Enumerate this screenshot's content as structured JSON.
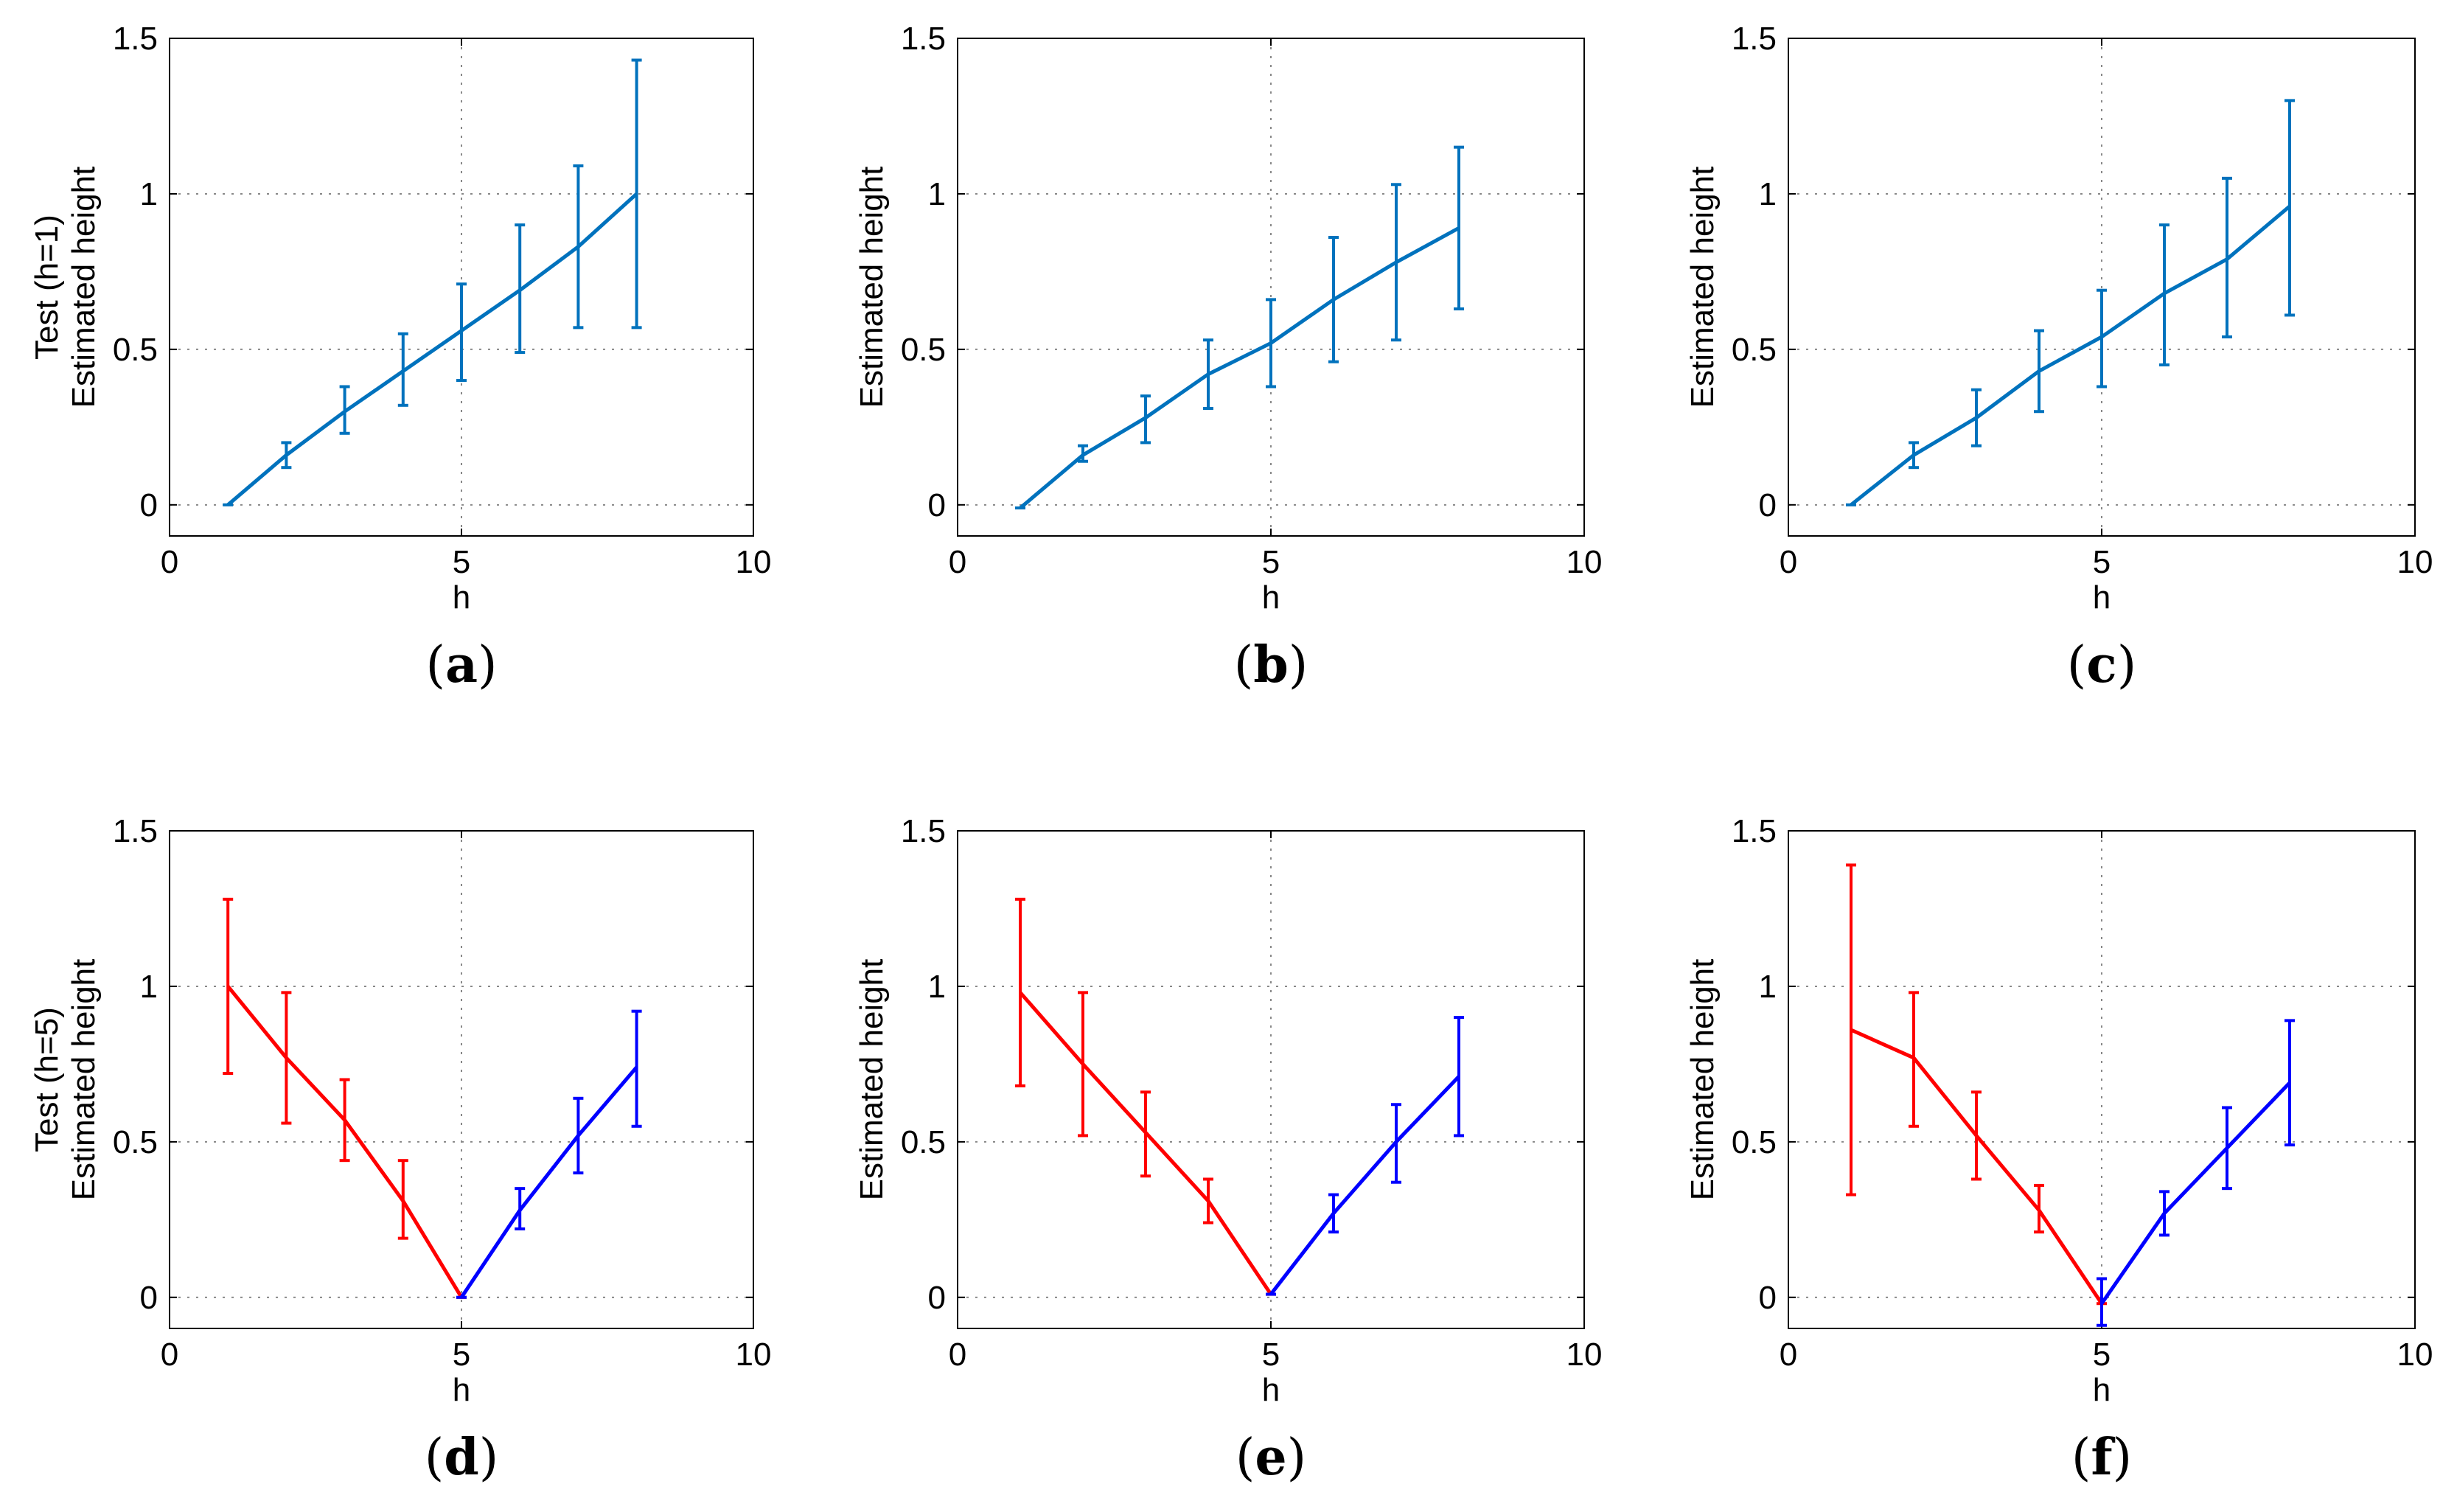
{
  "colors": {
    "steel": "#0072BD",
    "red": "#FF0000",
    "blue": "#0000FF",
    "grid": "#888888"
  },
  "chart_data": [
    {
      "type": "line",
      "caption": "(a)",
      "xlabel": "h",
      "ylabel_lines": [
        "Test (h=1)",
        "Estimated height"
      ],
      "xlim": [
        0,
        10
      ],
      "ylim": [
        -0.1,
        1.5
      ],
      "xticks": [
        "0",
        "5",
        "10"
      ],
      "yticks": [
        "0",
        "0.5",
        "1",
        "1.5"
      ],
      "grid": true,
      "series": [
        {
          "color": "steel",
          "x": [
            1,
            2,
            3,
            4,
            5,
            6,
            7,
            8
          ],
          "y": [
            0.0,
            0.16,
            0.3,
            0.43,
            0.56,
            0.69,
            0.83,
            1.0
          ],
          "err_low": [
            0.0,
            0.12,
            0.23,
            0.32,
            0.4,
            0.49,
            0.57,
            0.57
          ],
          "err_high": [
            0.0,
            0.2,
            0.38,
            0.55,
            0.71,
            0.9,
            1.09,
            1.43
          ]
        }
      ]
    },
    {
      "type": "line",
      "caption": "(b)",
      "xlabel": "h",
      "ylabel_lines": [
        "Estimated height"
      ],
      "xlim": [
        0,
        10
      ],
      "ylim": [
        -0.1,
        1.5
      ],
      "xticks": [
        "0",
        "5",
        "10"
      ],
      "yticks": [
        "0",
        "0.5",
        "1",
        "1.5"
      ],
      "grid": true,
      "series": [
        {
          "color": "steel",
          "x": [
            1,
            2,
            3,
            4,
            5,
            6,
            7,
            8
          ],
          "y": [
            -0.01,
            0.16,
            0.28,
            0.42,
            0.52,
            0.66,
            0.78,
            0.89
          ],
          "err_low": [
            -0.01,
            0.14,
            0.2,
            0.31,
            0.38,
            0.46,
            0.53,
            0.63
          ],
          "err_high": [
            -0.01,
            0.19,
            0.35,
            0.53,
            0.66,
            0.86,
            1.03,
            1.15
          ]
        }
      ]
    },
    {
      "type": "line",
      "caption": "(c)",
      "xlabel": "h",
      "ylabel_lines": [
        "Estimated height"
      ],
      "xlim": [
        0,
        10
      ],
      "ylim": [
        -0.1,
        1.5
      ],
      "xticks": [
        "0",
        "5",
        "10"
      ],
      "yticks": [
        "0",
        "0.5",
        "1",
        "1.5"
      ],
      "grid": true,
      "series": [
        {
          "color": "steel",
          "x": [
            1,
            2,
            3,
            4,
            5,
            6,
            7,
            8
          ],
          "y": [
            0.0,
            0.16,
            0.28,
            0.43,
            0.54,
            0.68,
            0.79,
            0.96
          ],
          "err_low": [
            0.0,
            0.12,
            0.19,
            0.3,
            0.38,
            0.45,
            0.54,
            0.61
          ],
          "err_high": [
            0.0,
            0.2,
            0.37,
            0.56,
            0.69,
            0.9,
            1.05,
            1.3
          ]
        }
      ]
    },
    {
      "type": "line",
      "caption": "(d)",
      "xlabel": "h",
      "ylabel_lines": [
        "Test (h=5)",
        "Estimated height"
      ],
      "xlim": [
        0,
        10
      ],
      "ylim": [
        -0.1,
        1.5
      ],
      "xticks": [
        "0",
        "5",
        "10"
      ],
      "yticks": [
        "0",
        "0.5",
        "1",
        "1.5"
      ],
      "grid": true,
      "series": [
        {
          "color": "red",
          "x": [
            1,
            2,
            3,
            4,
            5
          ],
          "y": [
            1.0,
            0.77,
            0.57,
            0.31,
            0.0
          ],
          "err_low": [
            0.72,
            0.56,
            0.44,
            0.19,
            0.0
          ],
          "err_high": [
            1.28,
            0.98,
            0.7,
            0.44,
            0.0
          ]
        },
        {
          "color": "blue",
          "x": [
            5,
            6,
            7,
            8
          ],
          "y": [
            0.0,
            0.28,
            0.52,
            0.74
          ],
          "err_low": [
            0.0,
            0.22,
            0.4,
            0.55
          ],
          "err_high": [
            0.0,
            0.35,
            0.64,
            0.92
          ]
        }
      ]
    },
    {
      "type": "line",
      "caption": "(e)",
      "xlabel": "h",
      "ylabel_lines": [
        "Estimated height"
      ],
      "xlim": [
        0,
        10
      ],
      "ylim": [
        -0.1,
        1.5
      ],
      "xticks": [
        "0",
        "5",
        "10"
      ],
      "yticks": [
        "0",
        "0.5",
        "1",
        "1.5"
      ],
      "grid": true,
      "series": [
        {
          "color": "red",
          "x": [
            1,
            2,
            3,
            4,
            5
          ],
          "y": [
            0.98,
            0.75,
            0.53,
            0.31,
            0.01
          ],
          "err_low": [
            0.68,
            0.52,
            0.39,
            0.24,
            0.01
          ],
          "err_high": [
            1.28,
            0.98,
            0.66,
            0.38,
            0.01
          ]
        },
        {
          "color": "blue",
          "x": [
            5,
            6,
            7,
            8
          ],
          "y": [
            0.01,
            0.27,
            0.5,
            0.71
          ],
          "err_low": [
            0.01,
            0.21,
            0.37,
            0.52
          ],
          "err_high": [
            0.01,
            0.33,
            0.62,
            0.9
          ]
        }
      ]
    },
    {
      "type": "line",
      "caption": "(f)",
      "xlabel": "h",
      "ylabel_lines": [
        "Estimated height"
      ],
      "xlim": [
        0,
        10
      ],
      "ylim": [
        -0.1,
        1.5
      ],
      "xticks": [
        "0",
        "5",
        "10"
      ],
      "yticks": [
        "0",
        "0.5",
        "1",
        "1.5"
      ],
      "grid": true,
      "series": [
        {
          "color": "red",
          "x": [
            1,
            2,
            3,
            4,
            5
          ],
          "y": [
            0.86,
            0.77,
            0.52,
            0.28,
            -0.02
          ],
          "err_low": [
            0.33,
            0.55,
            0.38,
            0.21,
            -0.02
          ],
          "err_high": [
            1.39,
            0.98,
            0.66,
            0.36,
            -0.02
          ]
        },
        {
          "color": "blue",
          "x": [
            5,
            6,
            7,
            8
          ],
          "y": [
            -0.02,
            0.27,
            0.48,
            0.69
          ],
          "err_low": [
            -0.09,
            0.2,
            0.35,
            0.49
          ],
          "err_high": [
            0.06,
            0.34,
            0.61,
            0.89
          ]
        }
      ]
    }
  ]
}
